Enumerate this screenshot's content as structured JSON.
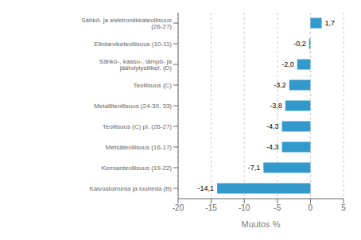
{
  "chart_data": {
    "type": "bar",
    "orientation": "horizontal",
    "categories": [
      "Sähkö- ja elektroniikkateollisuus (26-27)",
      "Elintarviketeollisuus (10-11)",
      "Sähkö-, kaasu-, lämpö- ja jäähdytysliiket. (D)",
      "Teollisuus (C)",
      "Metalliteollisuus (24-30, 33)",
      "Teollisuus (C) pl. (26-27)",
      "Metsäteollisuus (16-17)",
      "Kemianteollisuus (19-22)",
      "Kaivostoiminta  ja louhinta (B)"
    ],
    "values": [
      1.7,
      -0.2,
      -2.0,
      -3.2,
      -3.8,
      -4.3,
      -4.3,
      -7.1,
      -14.1
    ],
    "value_labels": [
      "1,7",
      "-0,2",
      "-2,0",
      "-3,2",
      "-3,8",
      "-4,3",
      "-4,3",
      "-7,1",
      "-14,1"
    ],
    "data_labels": true,
    "color": "#3399cc",
    "xlabel": "Muutos %",
    "xlim": [
      -20,
      5
    ],
    "xticks": [
      -20,
      -15,
      -10,
      -5,
      0,
      5
    ],
    "grid": true
  }
}
